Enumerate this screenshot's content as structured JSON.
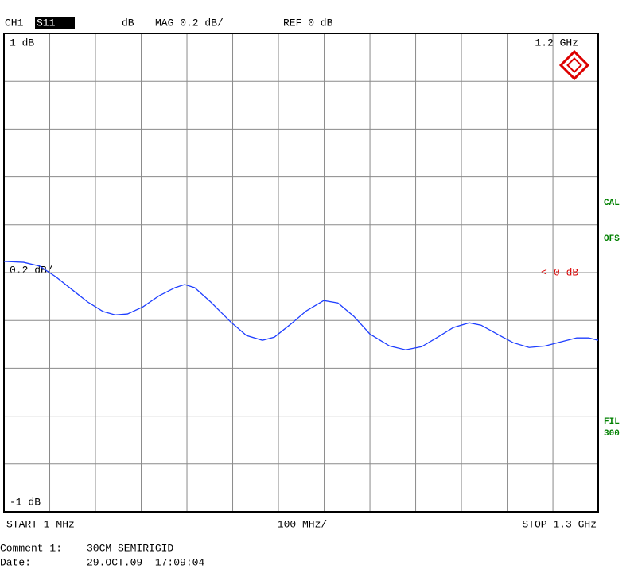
{
  "header": {
    "channel": "CH1",
    "param": "S11",
    "format": "dB",
    "scale": "MAG 0.2 dB/",
    "ref": "REF 0 dB"
  },
  "chart_data": {
    "type": "line",
    "x": [
      1,
      44,
      79,
      114,
      149,
      184,
      218,
      244,
      271,
      305,
      340,
      375,
      396,
      418,
      453,
      497,
      531,
      566,
      592,
      627,
      662,
      700,
      731,
      766,
      801,
      844,
      879,
      914,
      949,
      983,
      1018,
      1044,
      1079,
      1114,
      1149,
      1184,
      1218,
      1253,
      1279,
      1300
    ],
    "series": [
      {
        "color": "#1f3fff",
        "values": [
          0.047,
          0.043,
          0.027,
          -0.017,
          -0.07,
          -0.123,
          -0.163,
          -0.177,
          -0.173,
          -0.143,
          -0.097,
          -0.063,
          -0.05,
          -0.063,
          -0.123,
          -0.207,
          -0.263,
          -0.283,
          -0.27,
          -0.217,
          -0.16,
          -0.117,
          -0.127,
          -0.183,
          -0.257,
          -0.307,
          -0.323,
          -0.31,
          -0.27,
          -0.23,
          -0.21,
          -0.22,
          -0.257,
          -0.293,
          -0.313,
          -0.307,
          -0.29,
          -0.273,
          -0.273,
          -0.283
        ]
      }
    ],
    "xlim": [
      1,
      1300
    ],
    "ylim": [
      -1,
      1
    ],
    "xticks": [
      101,
      201,
      301,
      401,
      501,
      601,
      701,
      801,
      901,
      1001,
      1101,
      1201
    ],
    "yticks": [
      {
        "value": 1,
        "label": "1 dB"
      },
      0.8,
      0.6,
      0.4,
      0.2,
      0,
      -0.2,
      -0.4,
      -0.6,
      -0.8,
      {
        "value": -1,
        "label": "-1 dB"
      }
    ],
    "grid": true,
    "marker_label": "1.2 GHz",
    "scale_label": "0.2 dB/",
    "ref_label": "0 dB"
  },
  "side_labels": [
    "CAL",
    "OFS",
    "FIL",
    "300"
  ],
  "footer": {
    "start": "START 1 MHz",
    "span": "100 MHz/",
    "stop": "STOP 1.3 GHz"
  },
  "info": {
    "comment_label": "Comment 1:",
    "comment": "30CM SEMIRIGID",
    "date_label": "Date:",
    "date": "29.OCT.09  17:09:04"
  }
}
